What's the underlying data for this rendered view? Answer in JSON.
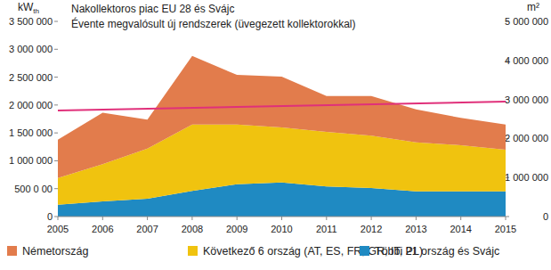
{
  "chart_data": {
    "type": "area",
    "stacked": true,
    "grid": false,
    "legend": "bottom",
    "title": "Nakollektoros piac EU 28 és Svájc",
    "subtitle": "Évente megvalósult új rendszerek (üvegezett kollektorokkal)",
    "ylabel": "kWth",
    "y2label": "m²",
    "x": [
      2005,
      2006,
      2007,
      2008,
      2009,
      2010,
      2011,
      2012,
      2013,
      2014,
      2015
    ],
    "xlim": [
      2005,
      2015
    ],
    "xticks": [
      2005,
      2006,
      2007,
      2008,
      2009,
      2010,
      2011,
      2012,
      2013,
      2014,
      2015
    ],
    "ylim": [
      0,
      3500000
    ],
    "yticks": [
      0,
      {
        "value": 500000,
        "label": "500 0 00"
      },
      {
        "value": 1000000,
        "label": "1 000 000"
      },
      {
        "value": 1500000,
        "label": "1 500 000"
      },
      {
        "value": 2000000,
        "label": "2 000 000"
      },
      {
        "value": 2500000,
        "label": "2 500 000"
      },
      {
        "value": 3000000,
        "label": "3 000 000"
      },
      {
        "value": 3500000,
        "label": "3 500 000"
      }
    ],
    "y2lim": [
      0,
      5000000
    ],
    "y2ticks": [
      0,
      {
        "value": 1000000,
        "label": "1 000 000"
      },
      {
        "value": 2000000,
        "label": "2 000 000"
      },
      {
        "value": 3000000,
        "label": "3 000 000"
      },
      {
        "value": 4000000,
        "label": "4 000 000"
      },
      {
        "value": 5000000,
        "label": "5 000 000"
      }
    ],
    "series": [
      {
        "name": "Németország",
        "color": "#e27c4c",
        "values": [
          690000,
          920000,
          520000,
          1230000,
          890000,
          910000,
          640000,
          710000,
          590000,
          490000,
          450000
        ]
      },
      {
        "name": "Következő 6 ország (AT, ES, FR, GR, IT, PL)",
        "color": "#f0c30f",
        "values": [
          480000,
          670000,
          900000,
          1190000,
          1070000,
          990000,
          980000,
          940000,
          880000,
          830000,
          750000
        ]
      },
      {
        "name": "Többi 21 ország és Svájc",
        "color": "#1f8ac2",
        "values": [
          210000,
          270000,
          320000,
          460000,
          580000,
          610000,
          540000,
          510000,
          450000,
          450000,
          450000
        ]
      },
      {
        "type": "line",
        "color": "#e0307a",
        "x": [
          2005,
          2015
        ],
        "values": [
          1900000,
          2060000
        ]
      }
    ]
  }
}
